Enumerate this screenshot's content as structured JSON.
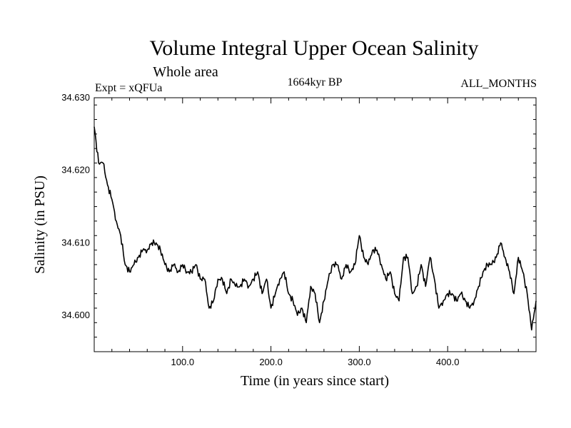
{
  "chart_data": {
    "type": "line",
    "title": "Volume Integral Upper Ocean Salinity",
    "subtitle": "Whole area",
    "expt_label": "Expt = xQFUa",
    "period_label": "1664kyr BP",
    "months_label": "ALL_MONTHS",
    "xlabel": "Time (in years since start)",
    "ylabel": "Salinity (in PSU)",
    "xlim": [
      0,
      500
    ],
    "ylim": [
      34.595,
      34.63
    ],
    "x_ticks": [
      100,
      200,
      300,
      400
    ],
    "x_tick_labels": [
      "100.0",
      "200.0",
      "300.0",
      "400.0"
    ],
    "y_ticks": [
      34.6,
      34.61,
      34.62,
      34.63
    ],
    "y_tick_labels": [
      "34.600",
      "34.610",
      "34.620",
      "34.630"
    ],
    "series": [
      {
        "name": "salinity",
        "x": [
          0,
          5,
          10,
          15,
          20,
          25,
          30,
          35,
          40,
          45,
          50,
          55,
          60,
          65,
          70,
          75,
          80,
          85,
          90,
          95,
          100,
          105,
          110,
          115,
          120,
          125,
          130,
          135,
          140,
          145,
          150,
          155,
          160,
          165,
          170,
          175,
          180,
          185,
          190,
          195,
          200,
          205,
          210,
          215,
          220,
          225,
          230,
          235,
          240,
          245,
          250,
          255,
          260,
          265,
          270,
          275,
          280,
          285,
          290,
          295,
          300,
          305,
          310,
          315,
          320,
          325,
          330,
          335,
          340,
          345,
          350,
          355,
          360,
          365,
          370,
          375,
          380,
          385,
          390,
          395,
          400,
          405,
          410,
          415,
          420,
          425,
          430,
          435,
          440,
          445,
          450,
          455,
          460,
          465,
          470,
          475,
          480,
          485,
          490,
          495,
          500
        ],
        "y": [
          34.626,
          34.621,
          34.621,
          34.618,
          34.616,
          34.613,
          34.611,
          34.607,
          34.606,
          34.607,
          34.608,
          34.609,
          34.609,
          34.61,
          34.61,
          34.609,
          34.607,
          34.606,
          34.607,
          34.606,
          34.607,
          34.606,
          34.606,
          34.607,
          34.605,
          34.605,
          34.601,
          34.602,
          34.605,
          34.605,
          34.603,
          34.605,
          34.604,
          34.604,
          34.605,
          34.604,
          34.605,
          34.606,
          34.603,
          34.605,
          34.601,
          34.603,
          34.605,
          34.606,
          34.603,
          34.602,
          34.6,
          34.601,
          34.599,
          34.604,
          34.603,
          34.599,
          34.602,
          34.605,
          34.607,
          34.607,
          34.605,
          34.607,
          34.606,
          34.607,
          34.611,
          34.608,
          34.607,
          34.609,
          34.609,
          34.607,
          34.605,
          34.606,
          34.603,
          34.602,
          34.608,
          34.608,
          34.603,
          34.604,
          34.607,
          34.604,
          34.608,
          34.605,
          34.601,
          34.602,
          34.603,
          34.603,
          34.602,
          34.603,
          34.602,
          34.601,
          34.602,
          34.604,
          34.606,
          34.607,
          34.607,
          34.608,
          34.61,
          34.608,
          34.606,
          34.603,
          34.608,
          34.606,
          34.603,
          34.598,
          34.602
        ]
      }
    ]
  }
}
